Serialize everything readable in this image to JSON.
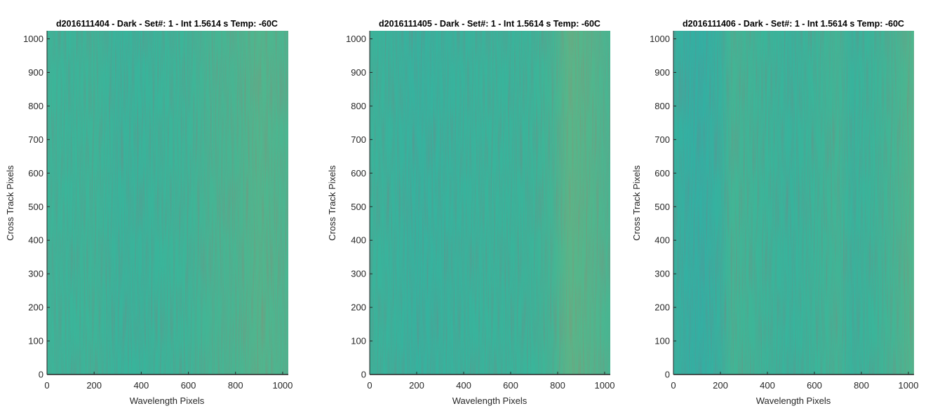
{
  "figure": {
    "colors": {
      "low": "#0f9bcf",
      "mid": "#3ab59a",
      "high": "#d3bd46",
      "axis": "#262626",
      "background": "#ffffff"
    }
  },
  "chart_data": [
    {
      "type": "heatmap",
      "title": "d2016111404 - Dark - Set#: 1 - Int 1.5614 s Temp: -60C",
      "xlabel": "Wavelength Pixels",
      "ylabel": "Cross Track Pixels",
      "xlim": [
        0,
        1024
      ],
      "ylim": [
        0,
        1024
      ],
      "xticks": [
        0,
        200,
        400,
        600,
        800,
        1000
      ],
      "yticks": [
        0,
        100,
        200,
        300,
        400,
        500,
        600,
        700,
        800,
        900,
        1000
      ],
      "column_profile": {
        "x": [
          0,
          100,
          200,
          300,
          400,
          500,
          600,
          700,
          800,
          900,
          1024
        ],
        "relative_level": [
          0.52,
          0.5,
          0.52,
          0.46,
          0.47,
          0.5,
          0.52,
          0.58,
          0.6,
          0.66,
          0.62
        ]
      },
      "colormap": "parula"
    },
    {
      "type": "heatmap",
      "title": "d2016111405 - Dark - Set#: 1 - Int 1.5614 s Temp: -60C",
      "xlabel": "Wavelength Pixels",
      "ylabel": "Cross Track Pixels",
      "xlim": [
        0,
        1024
      ],
      "ylim": [
        0,
        1024
      ],
      "xticks": [
        0,
        200,
        400,
        600,
        800,
        1000
      ],
      "yticks": [
        0,
        100,
        200,
        300,
        400,
        500,
        600,
        700,
        800,
        900,
        1000
      ],
      "column_profile": {
        "x": [
          0,
          100,
          200,
          300,
          400,
          500,
          600,
          700,
          780,
          850,
          950,
          1024
        ],
        "relative_level": [
          0.48,
          0.44,
          0.4,
          0.42,
          0.44,
          0.46,
          0.47,
          0.5,
          0.56,
          0.72,
          0.66,
          0.6
        ]
      },
      "colormap": "parula"
    },
    {
      "type": "heatmap",
      "title": "d2016111406 - Dark - Set#: 1 - Int 1.5614 s Temp: -60C",
      "xlabel": "Wavelength Pixels",
      "ylabel": "Cross Track Pixels",
      "xlim": [
        0,
        1024
      ],
      "ylim": [
        0,
        1024
      ],
      "xticks": [
        0,
        200,
        400,
        600,
        800,
        1000
      ],
      "yticks": [
        0,
        100,
        200,
        300,
        400,
        500,
        600,
        700,
        800,
        900,
        1000
      ],
      "column_profile": {
        "x": [
          0,
          60,
          120,
          200,
          250,
          300,
          400,
          500,
          600,
          700,
          760,
          850,
          950,
          1024
        ],
        "relative_level": [
          0.4,
          0.32,
          0.3,
          0.4,
          0.56,
          0.54,
          0.5,
          0.44,
          0.5,
          0.55,
          0.44,
          0.5,
          0.58,
          0.66
        ]
      },
      "colormap": "parula"
    }
  ]
}
